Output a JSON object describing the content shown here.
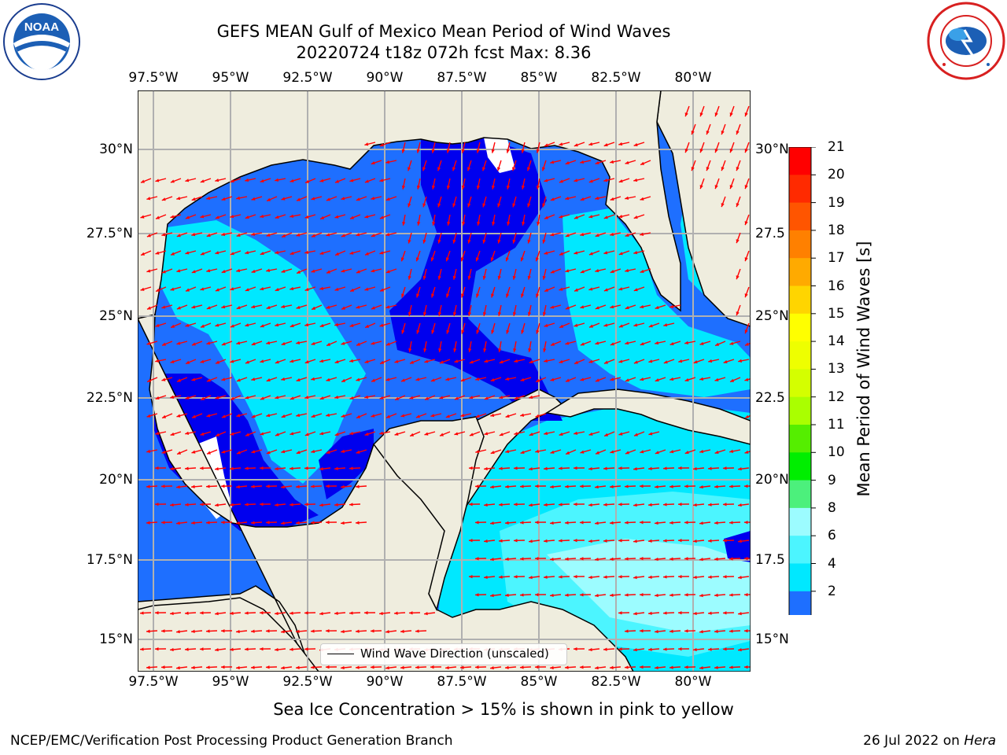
{
  "header": {
    "title_line1": "GEFS MEAN Gulf of Mexico Mean Period of Wind Waves",
    "title_line2": "20220724 t18z 072h fcst   Max: 8.36"
  },
  "logos": {
    "left": {
      "icon": "noaa-logo",
      "text": "NOAA",
      "ring_text": "NATIONAL OCEANIC AND ATMOSPHERIC ADMINISTRATION · U.S. DEPARTMENT OF COMMERCE"
    },
    "right": {
      "icon": "nws-logo",
      "ring_text": "NATIONAL WEATHER SERVICE"
    }
  },
  "map": {
    "lon_ticks": [
      "97.5°W",
      "95°W",
      "92.5°W",
      "90°W",
      "87.5°W",
      "85°W",
      "82.5°W",
      "80°W"
    ],
    "lat_ticks_left": [
      "30°N",
      "27.5°N",
      "25°N",
      "22.5°N",
      "20°N",
      "17.5°N",
      "15°N"
    ],
    "lat_ticks_right": [
      "30°N",
      "27.5",
      "25°N",
      "22.5",
      "20°N",
      "17.5",
      "15°N"
    ],
    "colors": {
      "land": "#efedde",
      "ocean_0_2": "#0000ee",
      "ocean_2_4": "#1e6fff",
      "ocean_4_6": "#00e8ff",
      "ocean_6_8": "#4cf5ff",
      "ocean_8_9": "#9cfcff",
      "arrow": "#ff0000",
      "grid": "#b0b0b0"
    },
    "legend_label": "Wind Wave Direction (unscaled)"
  },
  "colorbar": {
    "label": "Mean Period of Wind Waves [s]",
    "ticks": [
      "21",
      "20",
      "19",
      "18",
      "17",
      "16",
      "15",
      "14",
      "13",
      "12",
      "11",
      "10",
      "9",
      "8",
      "6",
      "4",
      "2"
    ],
    "colors": [
      "#ff0000",
      "#ff2a00",
      "#ff5500",
      "#ff8000",
      "#ffaa00",
      "#ffd500",
      "#ffff00",
      "#eeff00",
      "#d4ff00",
      "#aaff00",
      "#55ee00",
      "#00ee00",
      "#4cf07c",
      "#9cfcff",
      "#4cf5ff",
      "#00e8ff",
      "#1e6fff"
    ],
    "extend_color": "#0000ee"
  },
  "subtitle": "Sea Ice Concentration > 15% is shown in pink to yellow",
  "footer": {
    "left": "NCEP/EMC/Verification Post Processing Product Generation Branch",
    "date": "26 Jul 2022 on ",
    "machine": "Hera"
  }
}
